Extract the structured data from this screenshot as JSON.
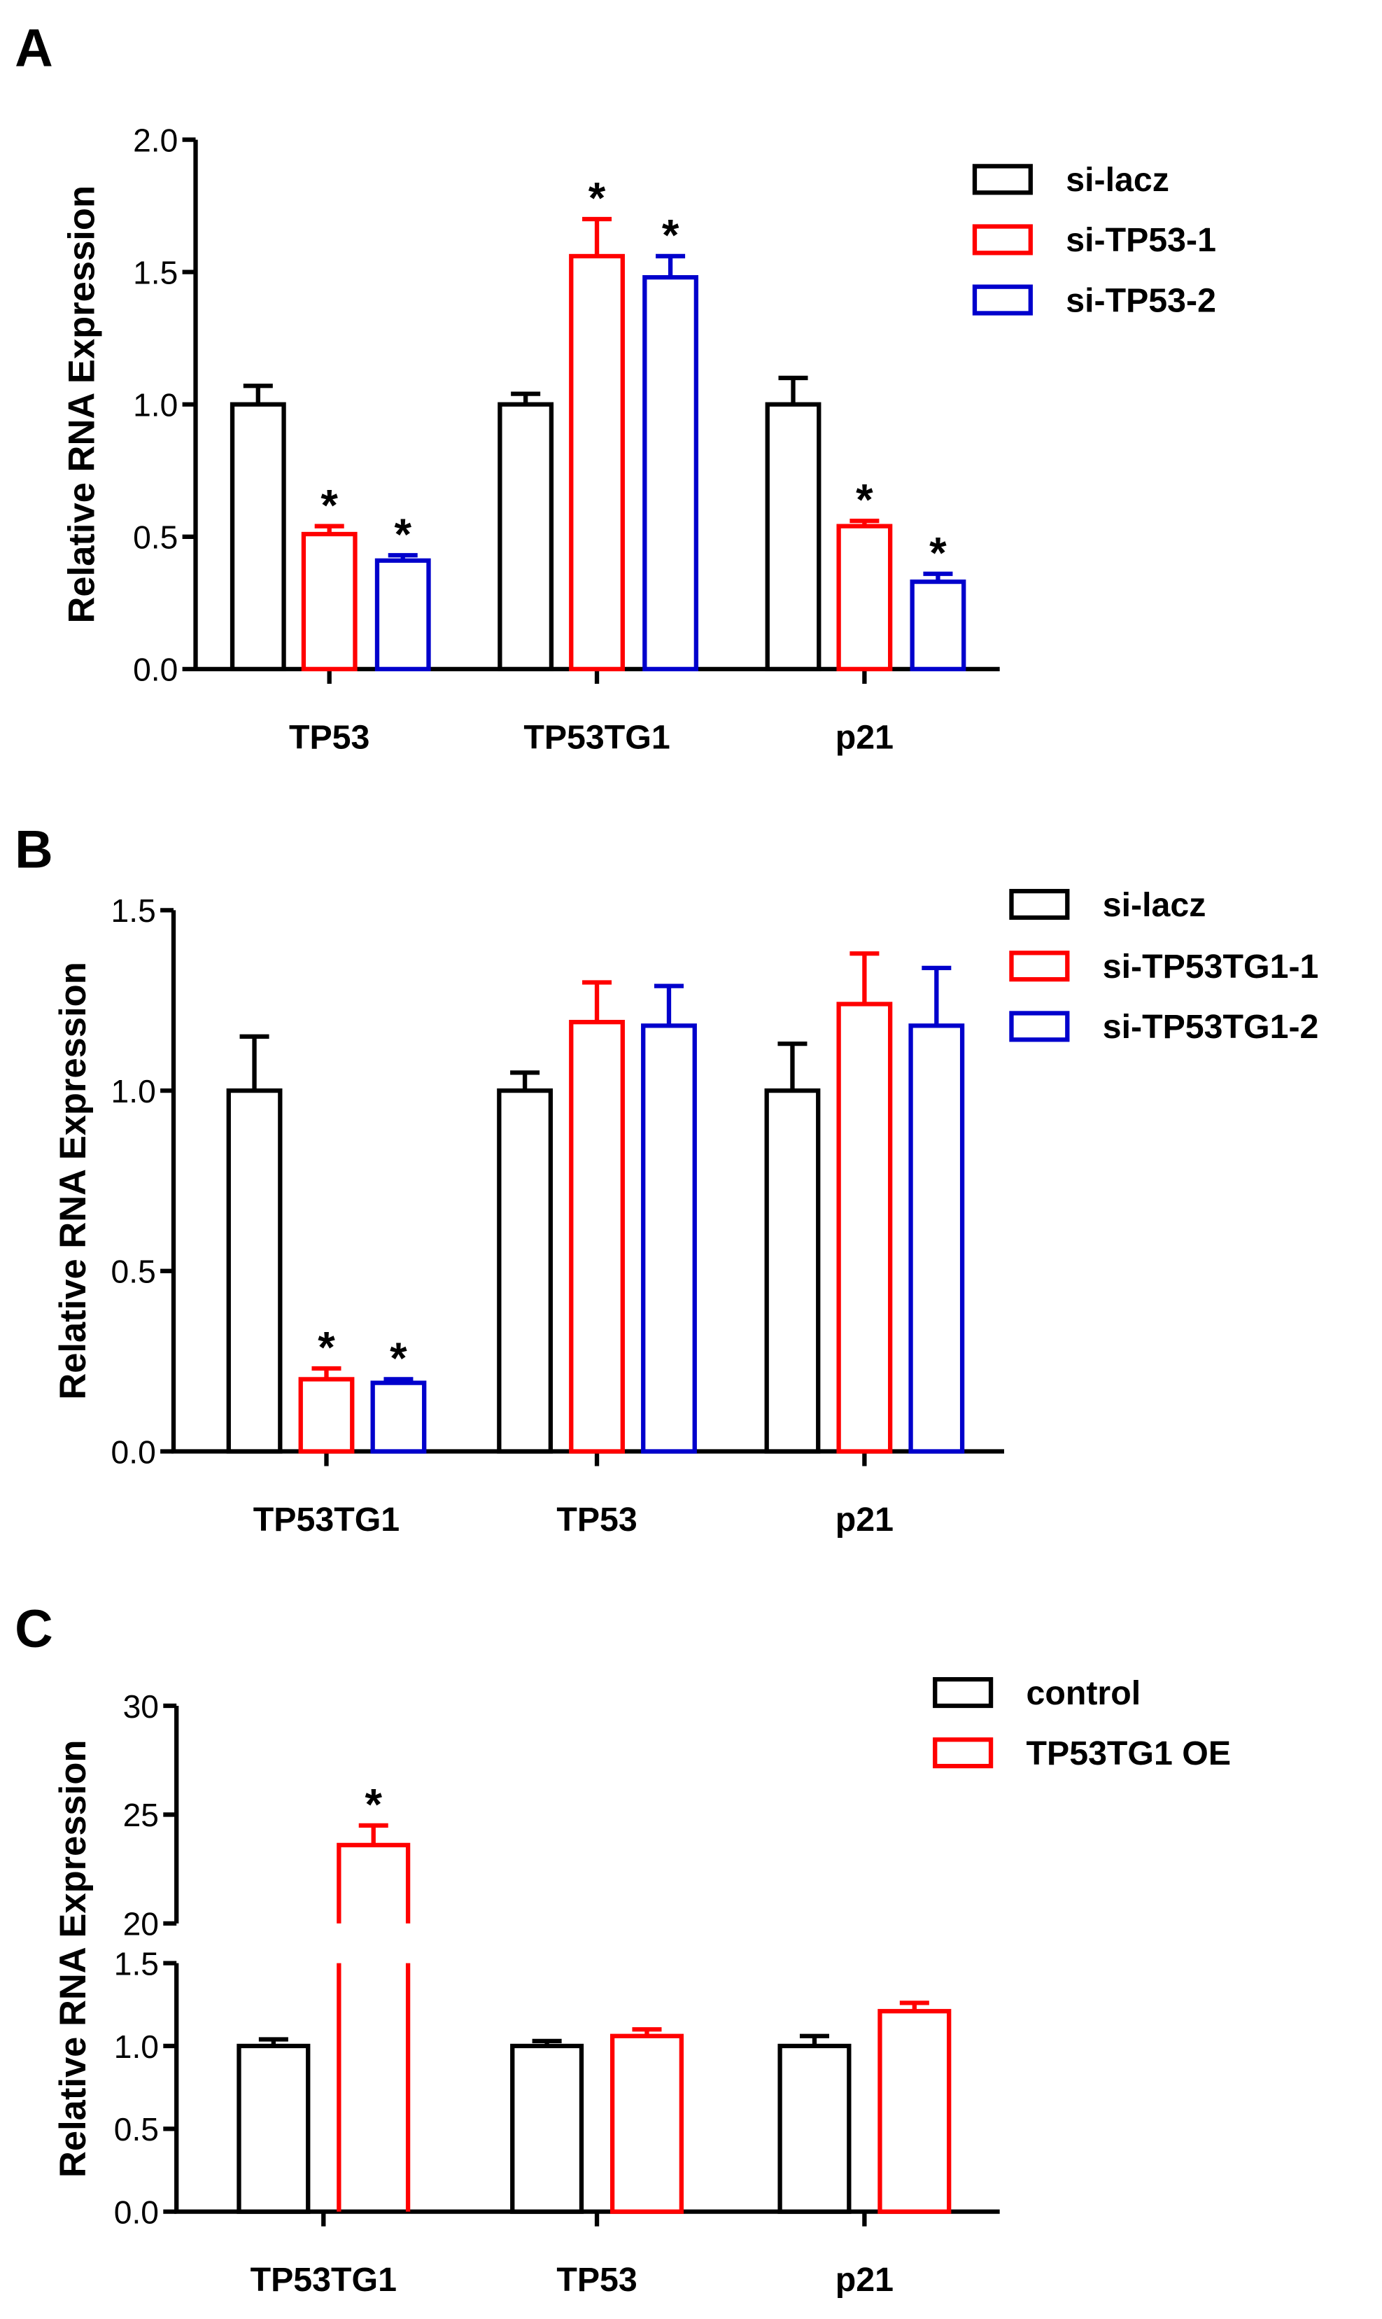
{
  "chart_data": [
    {
      "type": "bar",
      "panel": "A",
      "title": "",
      "xlabel": "",
      "ylabel": "Relative RNA Expression",
      "ylim": [
        0,
        2.0
      ],
      "yticks": [
        "0.0",
        "0.5",
        "1.0",
        "1.5",
        "2.0"
      ],
      "ytick_values": [
        0,
        0.5,
        1.0,
        1.5,
        2.0
      ],
      "categories": [
        "TP53",
        "TP53TG1",
        "p21"
      ],
      "legend_position": "top-right",
      "series": [
        {
          "name": "si-lacz",
          "color": "#000000",
          "values": [
            1.0,
            1.0,
            1.0
          ],
          "errors": [
            0.07,
            0.04,
            0.1
          ],
          "significant": [
            false,
            false,
            false
          ]
        },
        {
          "name": "si-TP53-1",
          "color": "#ff0000",
          "values": [
            0.51,
            1.56,
            0.54
          ],
          "errors": [
            0.03,
            0.14,
            0.02
          ],
          "significant": [
            true,
            true,
            true
          ]
        },
        {
          "name": "si-TP53-2",
          "color": "#0000cc",
          "values": [
            0.41,
            1.48,
            0.33
          ],
          "errors": [
            0.02,
            0.08,
            0.03
          ],
          "significant": [
            true,
            true,
            true
          ]
        }
      ],
      "significance_marker": "*"
    },
    {
      "type": "bar",
      "panel": "B",
      "title": "",
      "xlabel": "",
      "ylabel": "Relative RNA Expression",
      "ylim": [
        0,
        1.5
      ],
      "yticks": [
        "0.0",
        "0.5",
        "1.0",
        "1.5"
      ],
      "ytick_values": [
        0,
        0.5,
        1.0,
        1.5
      ],
      "categories": [
        "TP53TG1",
        "TP53",
        "p21"
      ],
      "legend_position": "top-right",
      "series": [
        {
          "name": "si-lacz",
          "color": "#000000",
          "values": [
            1.0,
            1.0,
            1.0
          ],
          "errors": [
            0.15,
            0.05,
            0.13
          ],
          "significant": [
            false,
            false,
            false
          ]
        },
        {
          "name": "si-TP53TG1-1",
          "color": "#ff0000",
          "values": [
            0.2,
            1.19,
            1.24
          ],
          "errors": [
            0.03,
            0.11,
            0.14
          ],
          "significant": [
            true,
            false,
            false
          ]
        },
        {
          "name": "si-TP53TG1-2",
          "color": "#0000cc",
          "values": [
            0.19,
            1.18,
            1.18
          ],
          "errors": [
            0.01,
            0.11,
            0.16
          ],
          "significant": [
            true,
            false,
            false
          ]
        }
      ],
      "significance_marker": "*"
    },
    {
      "type": "bar",
      "panel": "C",
      "title": "",
      "xlabel": "",
      "ylabel": "Relative RNA Expression",
      "ylim": [
        0,
        30
      ],
      "axis_break": [
        1.5,
        20
      ],
      "yticks": [
        "0.0",
        "0.5",
        "1.0",
        "1.5",
        "20",
        "25",
        "30"
      ],
      "ytick_values": [
        0,
        0.5,
        1.0,
        1.5,
        20,
        25,
        30
      ],
      "categories": [
        "TP53TG1",
        "TP53",
        "p21"
      ],
      "legend_position": "top-right",
      "series": [
        {
          "name": "control",
          "color": "#000000",
          "values": [
            1.0,
            1.0,
            1.0
          ],
          "errors": [
            0.04,
            0.03,
            0.06
          ],
          "significant": [
            false,
            false,
            false
          ]
        },
        {
          "name": "TP53TG1 OE",
          "color": "#ff0000",
          "values": [
            23.6,
            1.06,
            1.21
          ],
          "errors": [
            0.9,
            0.04,
            0.05
          ],
          "significant": [
            true,
            false,
            false
          ]
        }
      ],
      "significance_marker": "*"
    }
  ]
}
